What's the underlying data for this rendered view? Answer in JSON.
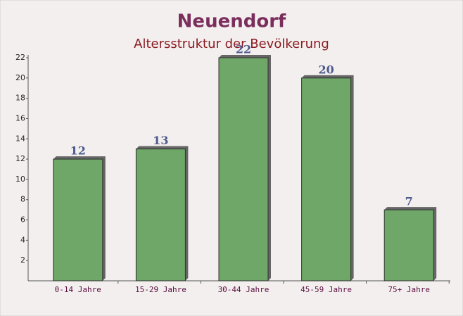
{
  "chart_data": {
    "type": "bar",
    "title": "Neuendorf",
    "subtitle": "Altersstruktur der Bevölkerung",
    "categories": [
      "0-14 Jahre",
      "15-29 Jahre",
      "30-44 Jahre",
      "45-59 Jahre",
      "75+ Jahre"
    ],
    "values": [
      12,
      13,
      22,
      20,
      7
    ],
    "color": "#5f9e58",
    "ylim": [
      0,
      22
    ],
    "yticks": [
      2,
      4,
      6,
      8,
      10,
      12,
      14,
      16,
      18,
      20,
      22
    ],
    "grid": false
  }
}
